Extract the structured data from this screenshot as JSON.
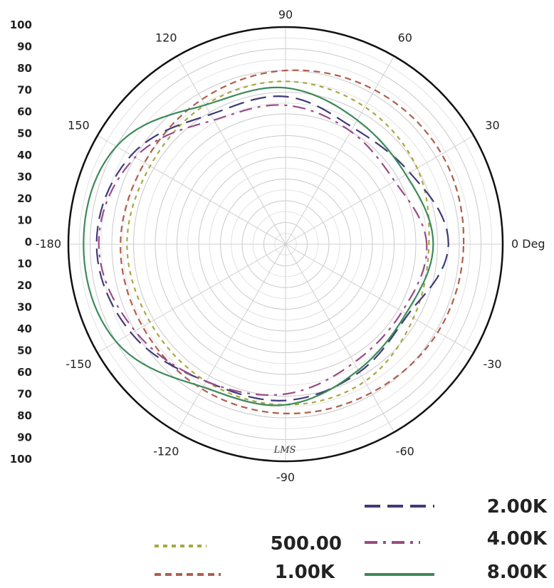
{
  "chart_data": {
    "type": "polar",
    "radial_axis": {
      "range": [
        0,
        100
      ],
      "ticks": [
        0,
        10,
        20,
        30,
        40,
        50,
        60,
        70,
        80,
        90,
        100
      ],
      "tick_labels_upper": [
        "100",
        "90",
        "80",
        "70",
        "60",
        "50",
        "40",
        "30",
        "20",
        "10",
        "0"
      ],
      "tick_labels_lower": [
        "10",
        "20",
        "30",
        "40",
        "50",
        "60",
        "70",
        "80",
        "90",
        "100"
      ]
    },
    "angular_axis": {
      "labels": [
        {
          "angle": 0,
          "label": "0 Deg"
        },
        {
          "angle": 30,
          "label": "30"
        },
        {
          "angle": 60,
          "label": "60"
        },
        {
          "angle": 90,
          "label": "90"
        },
        {
          "angle": 120,
          "label": "120"
        },
        {
          "angle": 150,
          "label": "150"
        },
        {
          "angle": 180,
          "label": "-180"
        },
        {
          "angle": -150,
          "label": "-150"
        },
        {
          "angle": -120,
          "label": "-120"
        },
        {
          "angle": -90,
          "label": "-90"
        },
        {
          "angle": -60,
          "label": "-60"
        },
        {
          "angle": -30,
          "label": "-30"
        }
      ]
    },
    "annotation": "LMS",
    "series": [
      {
        "name": "500.00",
        "color": "#a7a840",
        "dash": "dotted",
        "theta": [
          0,
          30,
          60,
          90,
          120,
          150,
          180,
          210,
          240,
          270,
          300,
          330
        ],
        "r": [
          66,
          70,
          73,
          75,
          74,
          72,
          73,
          72,
          73,
          74,
          73,
          68
        ]
      },
      {
        "name": "1.00K",
        "color": "#b05e4c",
        "dash": "dashed",
        "theta": [
          0,
          30,
          60,
          90,
          120,
          150,
          180,
          210,
          240,
          270,
          300,
          330
        ],
        "r": [
          82,
          83,
          82,
          80,
          77,
          75,
          76,
          76,
          77,
          78,
          79,
          81
        ]
      },
      {
        "name": "2.00K",
        "color": "#403a78",
        "dash": "long-dash",
        "theta": [
          0,
          30,
          60,
          90,
          120,
          150,
          180,
          210,
          240,
          270,
          300,
          330
        ],
        "r": [
          75,
          66,
          62,
          68,
          69,
          82,
          87,
          82,
          73,
          72,
          68,
          65
        ]
      },
      {
        "name": "4.00K",
        "color": "#9a4b86",
        "dash": "dash-dot",
        "theta": [
          0,
          30,
          60,
          90,
          120,
          150,
          180,
          210,
          240,
          270,
          300,
          330
        ],
        "r": [
          65,
          58,
          60,
          64,
          66,
          80,
          86,
          80,
          73,
          69,
          63,
          62
        ]
      },
      {
        "name": "8.00K",
        "color": "#3c8a5a",
        "dash": "solid",
        "theta": [
          0,
          30,
          60,
          90,
          120,
          150,
          180,
          210,
          240,
          270,
          300,
          330
        ],
        "r": [
          68,
          64,
          66,
          72,
          74,
          90,
          93,
          90,
          76,
          74,
          67,
          64
        ]
      }
    ],
    "legend_placement": "bottom-right"
  }
}
